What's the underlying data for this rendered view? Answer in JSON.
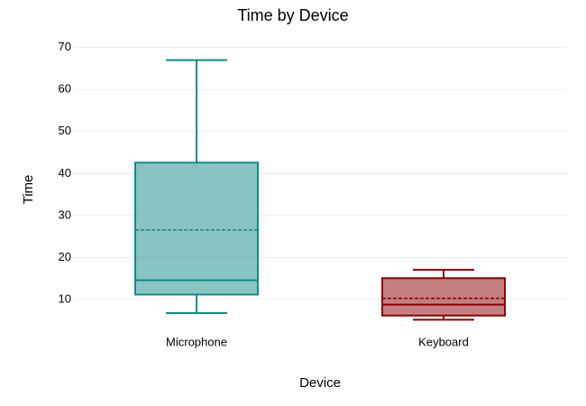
{
  "chart_data": {
    "type": "box",
    "title": "Time by Device",
    "x_label": "Device",
    "y_label": "Time",
    "categories": [
      "Microphone",
      "Keyboard"
    ],
    "boxes": [
      {
        "min": 6.8,
        "q1": 11.2,
        "median": 14.6,
        "q3": 42.6,
        "max": 67,
        "mean": 26.6
      },
      {
        "min": 5.2,
        "q1": 6.2,
        "median": 8.8,
        "q3": 15.1,
        "max": 17.1,
        "mean": 10.3
      }
    ],
    "colors": [
      "#138a87",
      "#8b0000"
    ],
    "ylim": [
      4,
      71
    ],
    "yticks": [
      10,
      20,
      30,
      40,
      50,
      60,
      70
    ],
    "grid": true
  }
}
